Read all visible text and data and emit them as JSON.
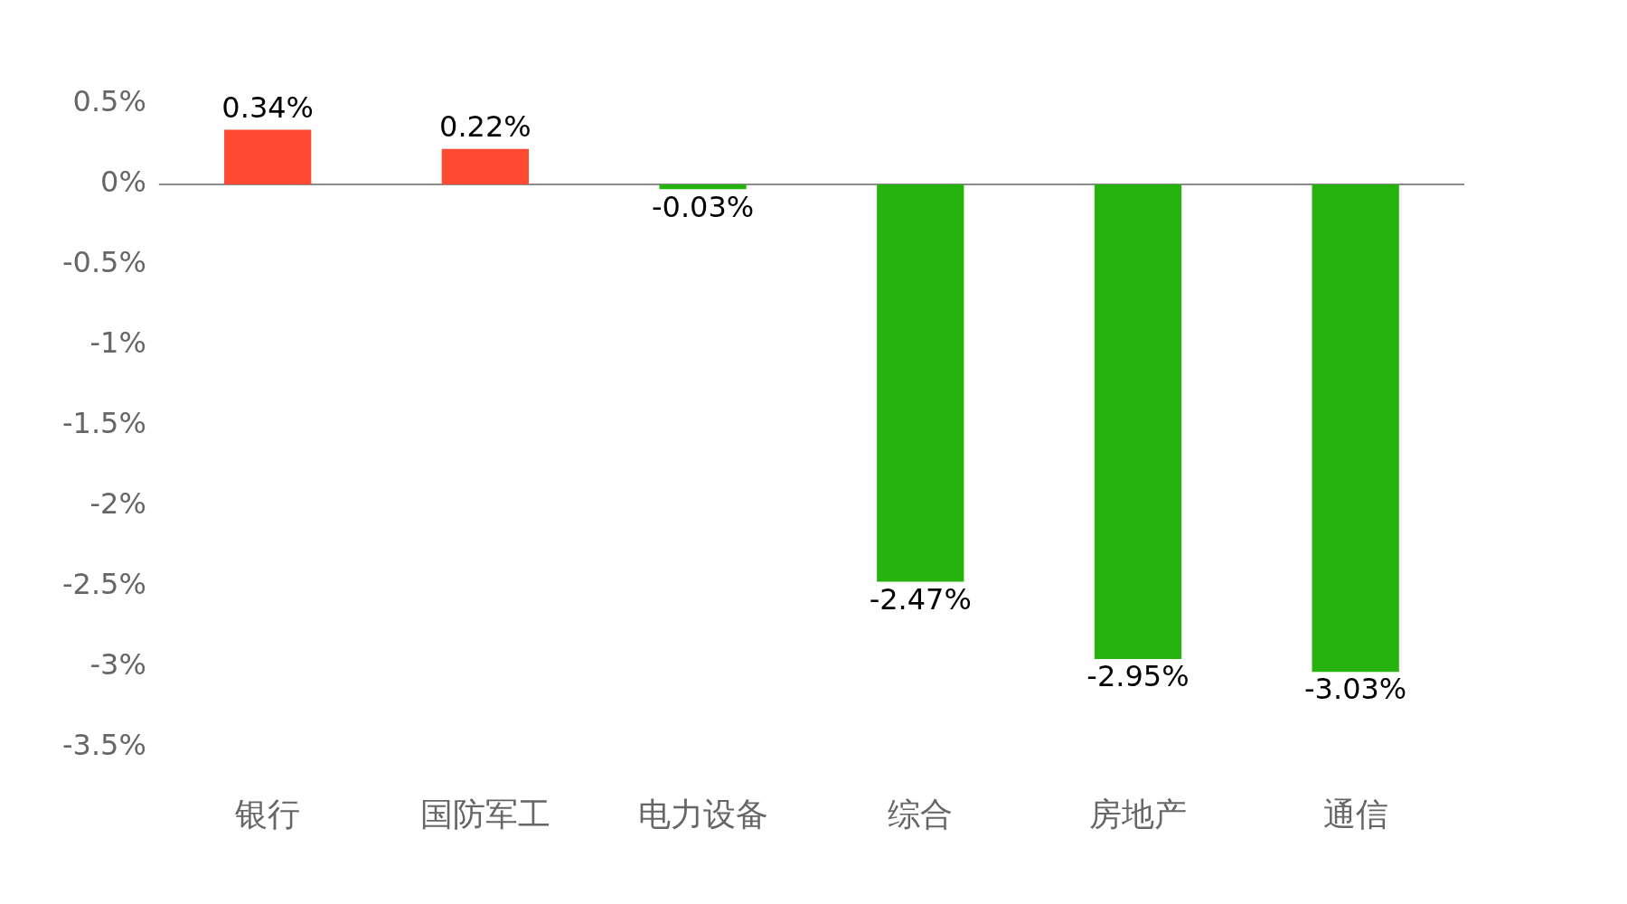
{
  "chart_data": {
    "type": "bar",
    "categories": [
      "银行",
      "国防军工",
      "电力设备",
      "综合",
      "房地产",
      "通信"
    ],
    "values": [
      0.34,
      0.22,
      -0.03,
      -2.47,
      -2.95,
      -3.03
    ],
    "colors": [
      "#ff4a33",
      "#ff4a33",
      "#26b30e",
      "#26b30e",
      "#26b30e",
      "#26b30e"
    ],
    "value_labels": [
      "0.34%",
      "0.22%",
      "-0.03%",
      "-2.47%",
      "-2.95%",
      "-3.03%"
    ],
    "ylim": [
      -3.5,
      0.5
    ],
    "yticks": [
      {
        "value": 0.5,
        "label": "0.5%"
      },
      {
        "value": 0,
        "label": "0%"
      },
      {
        "value": -0.5,
        "label": "-0.5%"
      },
      {
        "value": -1,
        "label": "-1%"
      },
      {
        "value": -1.5,
        "label": "-1.5%"
      },
      {
        "value": -2,
        "label": "-2%"
      },
      {
        "value": -2.5,
        "label": "-2.5%"
      },
      {
        "value": -3,
        "label": "-3%"
      },
      {
        "value": -3.5,
        "label": "-3.5%"
      }
    ],
    "ref_lines": [
      {
        "axis": "y",
        "value": 0,
        "color": "#666666"
      }
    ],
    "legend": false
  }
}
